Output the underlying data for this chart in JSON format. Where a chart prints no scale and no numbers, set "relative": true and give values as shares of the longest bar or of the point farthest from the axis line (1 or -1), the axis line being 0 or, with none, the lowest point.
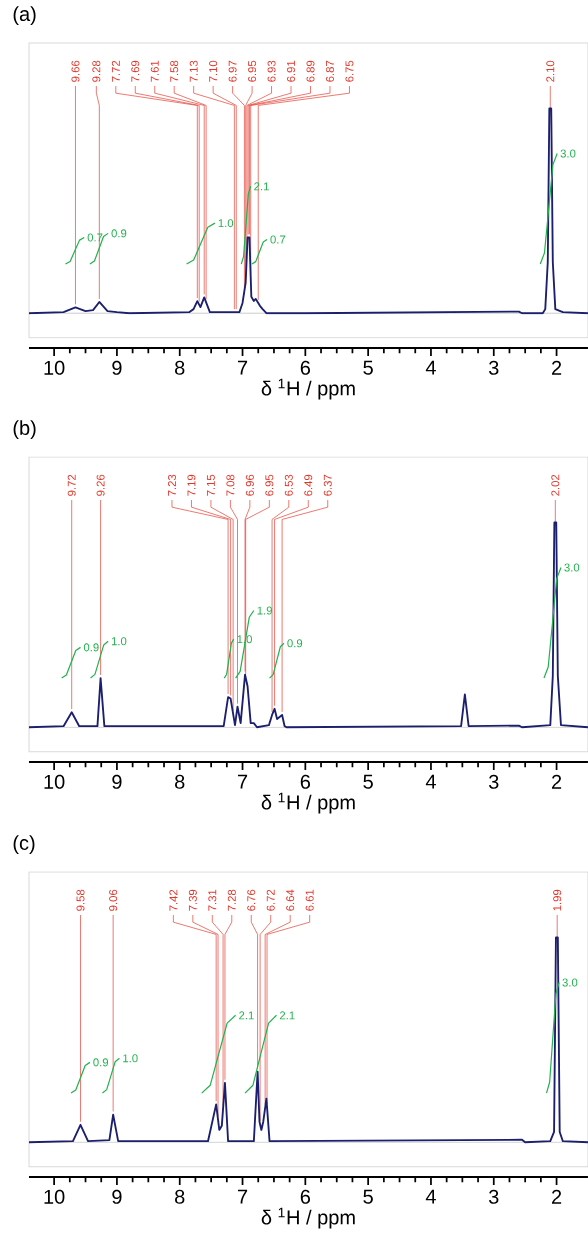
{
  "chart_data": [
    {
      "type": "line",
      "title": "(a)",
      "xlabel": "δ $^{1}$H / ppm",
      "relative": true,
      "xlim": [
        10.4,
        1.5
      ],
      "xticks": [
        10,
        9,
        8,
        7,
        6,
        5,
        4,
        3,
        2
      ],
      "series": [
        {
          "color": "#1b1f6e",
          "x": [
            10.4,
            9.85,
            9.66,
            9.5,
            9.38,
            9.28,
            9.15,
            9.0,
            8.8,
            7.85,
            7.78,
            7.72,
            7.67,
            7.61,
            7.52,
            7.05,
            7.0,
            6.95,
            6.92,
            6.89,
            6.86,
            6.82,
            6.79,
            6.75,
            6.72,
            6.68,
            6.62,
            6.0,
            2.6,
            2.55,
            2.22,
            2.18,
            2.14,
            2.115,
            2.085,
            2.06,
            2.02,
            1.9,
            1.5
          ],
          "values": [
            0.0,
            0.005,
            0.028,
            0.01,
            0.015,
            0.055,
            0.01,
            0.005,
            0.0,
            0.005,
            0.02,
            0.059,
            0.03,
            0.077,
            0.005,
            0.005,
            0.05,
            0.15,
            0.37,
            0.37,
            0.08,
            0.06,
            0.07,
            0.05,
            0.035,
            0.02,
            0.0,
            0.0,
            0.008,
            0.0,
            0.0,
            0.02,
            0.25,
            1.0,
            1.0,
            0.25,
            0.02,
            0.005,
            0.0
          ]
        },
        {
          "name": "0.7",
          "color": "#22b14c",
          "x": [
            9.82,
            9.745,
            9.67,
            9.595,
            9.52
          ],
          "values": [
            0.24,
            0.253,
            0.305,
            0.357,
            0.37
          ]
        },
        {
          "name": "0.9",
          "color": "#22b14c",
          "x": [
            9.43,
            9.358,
            9.285,
            9.213,
            9.14
          ],
          "values": [
            0.24,
            0.255,
            0.315,
            0.375,
            0.39
          ]
        },
        {
          "name": "1.0",
          "color": "#22b14c",
          "x": [
            7.89,
            7.778,
            7.665,
            7.553,
            7.44
          ],
          "values": [
            0.24,
            0.26,
            0.34,
            0.42,
            0.44
          ]
        },
        {
          "name": "2.1",
          "color": "#22b14c",
          "x": [
            7.02,
            6.983,
            6.945,
            6.908,
            6.87
          ],
          "values": [
            0.24,
            0.278,
            0.43,
            0.582,
            0.62
          ]
        },
        {
          "name": "0.7",
          "color": "#22b14c",
          "x": [
            6.85,
            6.79,
            6.73,
            6.67,
            6.61
          ],
          "values": [
            0.24,
            0.252,
            0.3,
            0.348,
            0.36
          ]
        },
        {
          "name": "3.0",
          "color": "#22b14c",
          "x": [
            2.26,
            2.193,
            2.125,
            2.058,
            1.99
          ],
          "values": [
            0.24,
            0.294,
            0.51,
            0.726,
            0.78
          ]
        }
      ],
      "annotations": [
        {
          "text": "9.66",
          "x": 9.66,
          "y": 0.028
        },
        {
          "text": "9.28",
          "x": 9.28,
          "y": 0.055
        },
        {
          "text": "7.72",
          "x": 7.72,
          "y": 0.059
        },
        {
          "text": "7.69",
          "x": 7.69,
          "y": 0.042
        },
        {
          "text": "7.61",
          "x": 7.61,
          "y": 0.077
        },
        {
          "text": "7.58",
          "x": 7.58,
          "y": 0.053
        },
        {
          "text": "7.13",
          "x": 7.13,
          "y": 0.005
        },
        {
          "text": "7.10",
          "x": 7.1,
          "y": 0.005
        },
        {
          "text": "6.97",
          "x": 6.97,
          "y": 0.11
        },
        {
          "text": "6.95",
          "x": 6.95,
          "y": 0.15
        },
        {
          "text": "6.93",
          "x": 6.93,
          "y": 0.297
        },
        {
          "text": "6.91",
          "x": 6.91,
          "y": 0.37
        },
        {
          "text": "6.89",
          "x": 6.89,
          "y": 0.37
        },
        {
          "text": "6.87",
          "x": 6.87,
          "y": 0.177
        },
        {
          "text": "6.75",
          "x": 6.75,
          "y": 0.05
        },
        {
          "text": "2.10",
          "x": 2.1,
          "y": 1.0
        }
      ]
    },
    {
      "type": "line",
      "title": "(b)",
      "xlabel": "δ $^{1}$H / ppm",
      "relative": true,
      "xlim": [
        10.4,
        1.5
      ],
      "xticks": [
        10,
        9,
        8,
        7,
        6,
        5,
        4,
        3,
        2
      ],
      "series": [
        {
          "color": "#1b1f6e",
          "x": [
            10.4,
            9.85,
            9.72,
            9.6,
            9.31,
            9.26,
            9.2,
            7.3,
            7.23,
            7.19,
            7.12,
            7.08,
            7.03,
            6.96,
            6.92,
            6.87,
            6.82,
            6.77,
            6.58,
            6.53,
            6.49,
            6.45,
            6.37,
            6.33,
            6.3,
            3.52,
            3.46,
            3.4,
            2.6,
            2.55,
            2.1,
            2.06,
            2.035,
            2.005,
            1.98,
            1.93,
            1.5
          ],
          "values": [
            0.0,
            0.005,
            0.073,
            0.005,
            0.005,
            0.24,
            0.005,
            0.005,
            0.147,
            0.14,
            0.01,
            0.1,
            0.02,
            0.257,
            0.2,
            0.02,
            0.02,
            0.0,
            0.01,
            0.06,
            0.09,
            0.04,
            0.06,
            0.005,
            0.0,
            0.005,
            0.16,
            0.005,
            0.008,
            0.0,
            0.01,
            0.25,
            1.0,
            1.0,
            0.25,
            0.01,
            0.0
          ]
        },
        {
          "name": "0.9",
          "color": "#22b14c",
          "x": [
            9.88,
            9.805,
            9.73,
            9.655,
            9.58
          ],
          "values": [
            0.24,
            0.255,
            0.315,
            0.375,
            0.39
          ]
        },
        {
          "name": "1.0",
          "color": "#22b14c",
          "x": [
            9.42,
            9.35,
            9.28,
            9.21,
            9.14
          ],
          "values": [
            0.24,
            0.258,
            0.33,
            0.402,
            0.42
          ]
        },
        {
          "name": "1.0",
          "color": "#22b14c",
          "x": [
            7.29,
            7.253,
            7.215,
            7.178,
            7.14
          ],
          "values": [
            0.24,
            0.259,
            0.335,
            0.411,
            0.43
          ]
        },
        {
          "name": "1.9",
          "color": "#22b14c",
          "x": [
            7.11,
            7.038,
            6.965,
            6.893,
            6.82
          ],
          "values": [
            0.24,
            0.273,
            0.405,
            0.537,
            0.57
          ]
        },
        {
          "name": "0.9",
          "color": "#22b14c",
          "x": [
            6.57,
            6.513,
            6.455,
            6.398,
            6.34
          ],
          "values": [
            0.24,
            0.257,
            0.325,
            0.393,
            0.41
          ]
        },
        {
          "name": "3.0",
          "color": "#22b14c",
          "x": [
            2.2,
            2.133,
            2.065,
            1.998,
            1.93
          ],
          "values": [
            0.24,
            0.294,
            0.51,
            0.726,
            0.78
          ]
        }
      ],
      "annotations": [
        {
          "text": "9.72",
          "x": 9.72,
          "y": 0.073
        },
        {
          "text": "9.26",
          "x": 9.26,
          "y": 0.24
        },
        {
          "text": "7.23",
          "x": 7.23,
          "y": 0.147
        },
        {
          "text": "7.19",
          "x": 7.19,
          "y": 0.14
        },
        {
          "text": "7.15",
          "x": 7.15,
          "y": 0.066
        },
        {
          "text": "7.08",
          "x": 7.08,
          "y": 0.1
        },
        {
          "text": "6.96",
          "x": 6.96,
          "y": 0.257
        },
        {
          "text": "6.95",
          "x": 6.95,
          "y": 0.243
        },
        {
          "text": "6.53",
          "x": 6.53,
          "y": 0.06
        },
        {
          "text": "6.49",
          "x": 6.49,
          "y": 0.09
        },
        {
          "text": "6.37",
          "x": 6.37,
          "y": 0.06
        },
        {
          "text": "2.02",
          "x": 2.02,
          "y": 1.0
        }
      ]
    },
    {
      "type": "line",
      "title": "(c)",
      "xlabel": "δ $^{1}$H / ppm",
      "relative": true,
      "xlim": [
        10.4,
        1.5
      ],
      "xticks": [
        10,
        9,
        8,
        7,
        6,
        5,
        4,
        3,
        2
      ],
      "series": [
        {
          "color": "#1b1f6e",
          "x": [
            10.4,
            9.7,
            9.58,
            9.46,
            9.12,
            9.06,
            8.98,
            7.55,
            7.42,
            7.37,
            7.33,
            7.28,
            7.23,
            6.82,
            6.76,
            6.73,
            6.7,
            6.67,
            6.62,
            6.57,
            2.55,
            2.5,
            2.1,
            2.04,
            2.01,
            1.98,
            1.95,
            1.9,
            1.5
          ],
          "values": [
            0.0,
            0.005,
            0.085,
            0.005,
            0.01,
            0.135,
            0.005,
            0.005,
            0.185,
            0.06,
            0.08,
            0.29,
            0.005,
            0.005,
            0.344,
            0.1,
            0.06,
            0.1,
            0.213,
            0.005,
            0.012,
            0.0,
            0.005,
            0.05,
            1.0,
            1.0,
            0.05,
            0.005,
            0.0
          ]
        },
        {
          "name": "0.9",
          "color": "#22b14c",
          "x": [
            9.73,
            9.655,
            9.58,
            9.505,
            9.43
          ],
          "values": [
            0.24,
            0.255,
            0.315,
            0.375,
            0.39
          ]
        },
        {
          "name": "1.0",
          "color": "#22b14c",
          "x": [
            9.23,
            9.163,
            9.095,
            9.028,
            8.96
          ],
          "values": [
            0.24,
            0.257,
            0.325,
            0.393,
            0.41
          ]
        },
        {
          "name": "2.1",
          "color": "#22b14c",
          "x": [
            7.65,
            7.515,
            7.38,
            7.245,
            7.11
          ],
          "values": [
            0.24,
            0.278,
            0.43,
            0.582,
            0.62
          ]
        },
        {
          "name": "2.1",
          "color": "#22b14c",
          "x": [
            6.96,
            6.835,
            6.71,
            6.585,
            6.46
          ],
          "values": [
            0.24,
            0.278,
            0.43,
            0.582,
            0.62
          ]
        },
        {
          "name": "3.0",
          "color": "#22b14c",
          "x": [
            2.16,
            2.11,
            2.06,
            2.01,
            1.96
          ],
          "values": [
            0.24,
            0.294,
            0.51,
            0.726,
            0.78
          ]
        }
      ],
      "annotations": [
        {
          "text": "9.58",
          "x": 9.58,
          "y": 0.085
        },
        {
          "text": "9.06",
          "x": 9.06,
          "y": 0.135
        },
        {
          "text": "7.42",
          "x": 7.42,
          "y": 0.185
        },
        {
          "text": "7.39",
          "x": 7.39,
          "y": 0.11
        },
        {
          "text": "7.31",
          "x": 7.31,
          "y": 0.164
        },
        {
          "text": "7.28",
          "x": 7.28,
          "y": 0.29
        },
        {
          "text": "6.76",
          "x": 6.76,
          "y": 0.344
        },
        {
          "text": "6.72",
          "x": 6.72,
          "y": 0.087
        },
        {
          "text": "6.64",
          "x": 6.64,
          "y": 0.168
        },
        {
          "text": "6.61",
          "x": 6.61,
          "y": 0.171
        },
        {
          "text": "1.99",
          "x": 1.99,
          "y": 1.0
        }
      ]
    }
  ]
}
